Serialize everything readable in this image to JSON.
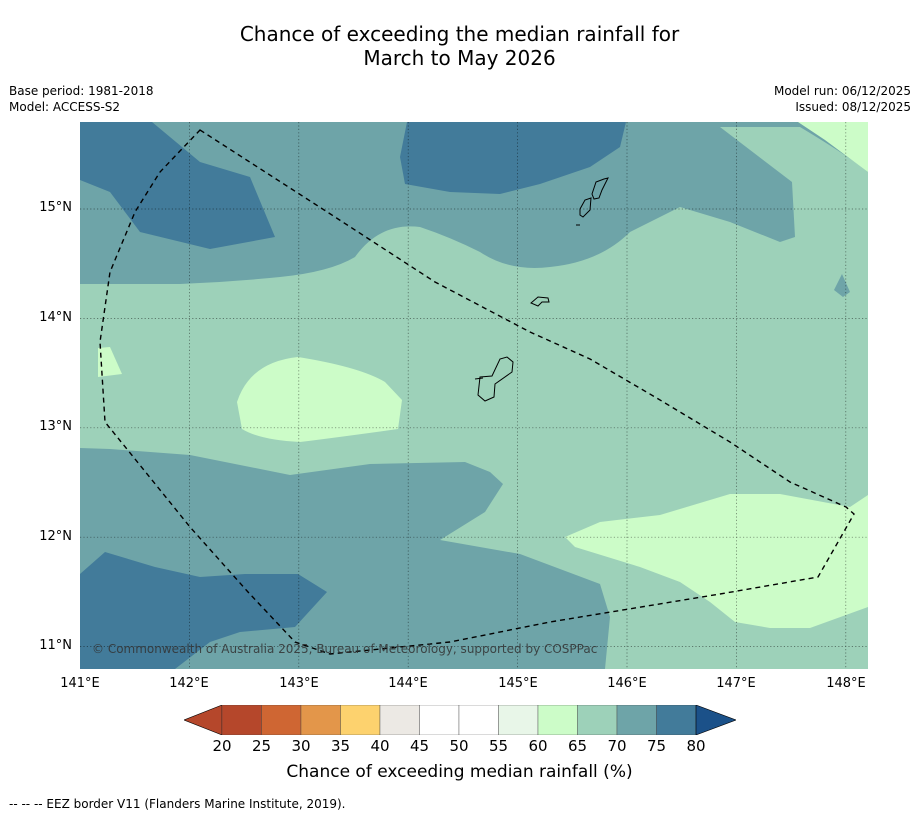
{
  "title": {
    "line1": "Chance of exceeding the median rainfall for",
    "line2": "March to May 2026"
  },
  "meta_left": {
    "base_period": "Base period: 1981-2018",
    "model": "Model: ACCESS-S2"
  },
  "meta_right": {
    "model_run": "Model run: 06/12/2025",
    "issued": "Issued: 08/12/2025"
  },
  "map": {
    "lat_labels": [
      "15°N",
      "14°N",
      "13°N",
      "12°N",
      "11°N"
    ],
    "lon_labels": [
      "141°E",
      "142°E",
      "143°E",
      "144°E",
      "145°E",
      "146°E",
      "147°E",
      "148°E"
    ],
    "copyright": "© Commonwealth of Australia 2025, Bureau of Meteorology, supported by COSPPac"
  },
  "colorbar": {
    "ticks": [
      "20",
      "25",
      "30",
      "35",
      "40",
      "45",
      "50",
      "55",
      "60",
      "65",
      "70",
      "75",
      "80"
    ],
    "label": "Chance of exceeding median rainfall (%)",
    "colors": {
      "below_20": "#b5472b",
      "c20_25": "#b5472b",
      "c25_30": "#cf6633",
      "c30_35": "#e3964a",
      "c35_40": "#fdd26e",
      "c40_45": "#ece9e4",
      "c45_50": "#ffffff",
      "c50_55": "#ffffff",
      "c55_60": "#e8f6e8",
      "c60_65": "#ccfcc8",
      "c65_70": "#9dd1b9",
      "c70_75": "#6ea4a8",
      "c75_80": "#427b9a",
      "above_80": "#1b5189"
    }
  },
  "footnote": "--  --  -- EEZ border V11 (Flanders Marine Institute, 2019)."
}
